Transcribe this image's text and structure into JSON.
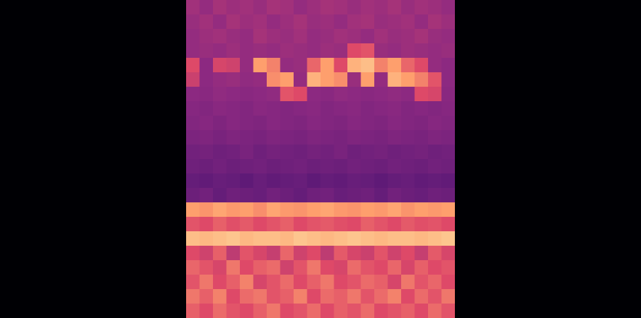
{
  "chart_data": {
    "type": "heatmap",
    "tick_labels": false,
    "cells": [
      [
        0.55,
        0.52,
        0.56,
        0.54,
        0.55,
        0.53,
        0.56,
        0.55,
        0.52,
        0.54,
        0.56,
        0.55,
        0.53,
        0.55,
        0.54,
        0.56,
        0.53,
        0.55,
        0.54,
        0.52
      ],
      [
        0.53,
        0.55,
        0.52,
        0.56,
        0.54,
        0.55,
        0.52,
        0.54,
        0.56,
        0.53,
        0.54,
        0.52,
        0.55,
        0.56,
        0.53,
        0.54,
        0.55,
        0.52,
        0.56,
        0.54
      ],
      [
        0.52,
        0.54,
        0.55,
        0.53,
        0.52,
        0.56,
        0.54,
        0.53,
        0.55,
        0.52,
        0.53,
        0.55,
        0.54,
        0.52,
        0.55,
        0.53,
        0.54,
        0.56,
        0.53,
        0.52
      ],
      [
        0.52,
        0.53,
        0.52,
        0.54,
        0.52,
        0.53,
        0.52,
        0.54,
        0.53,
        0.52,
        0.54,
        0.53,
        0.7,
        0.72,
        0.53,
        0.52,
        0.54,
        0.53,
        0.52,
        0.53
      ],
      [
        0.7,
        0.5,
        0.68,
        0.66,
        0.52,
        0.85,
        0.8,
        0.52,
        0.53,
        0.75,
        0.85,
        0.7,
        0.88,
        0.9,
        0.8,
        0.85,
        0.75,
        0.7,
        0.52,
        0.5
      ],
      [
        0.65,
        0.5,
        0.52,
        0.53,
        0.51,
        0.52,
        0.82,
        0.85,
        0.52,
        0.88,
        0.85,
        0.82,
        0.53,
        0.85,
        0.52,
        0.88,
        0.85,
        0.8,
        0.72,
        0.5
      ],
      [
        0.5,
        0.49,
        0.51,
        0.5,
        0.49,
        0.5,
        0.51,
        0.72,
        0.7,
        0.5,
        0.49,
        0.51,
        0.5,
        0.49,
        0.5,
        0.51,
        0.5,
        0.7,
        0.68,
        0.49
      ],
      [
        0.48,
        0.47,
        0.49,
        0.48,
        0.47,
        0.49,
        0.48,
        0.47,
        0.48,
        0.49,
        0.47,
        0.48,
        0.49,
        0.47,
        0.48,
        0.49,
        0.47,
        0.48,
        0.47,
        0.48
      ],
      [
        0.47,
        0.48,
        0.46,
        0.48,
        0.47,
        0.46,
        0.48,
        0.47,
        0.46,
        0.48,
        0.47,
        0.46,
        0.48,
        0.47,
        0.46,
        0.48,
        0.47,
        0.46,
        0.48,
        0.47
      ],
      [
        0.45,
        0.46,
        0.44,
        0.46,
        0.45,
        0.44,
        0.46,
        0.45,
        0.44,
        0.46,
        0.45,
        0.44,
        0.46,
        0.45,
        0.44,
        0.46,
        0.45,
        0.44,
        0.46,
        0.45
      ],
      [
        0.42,
        0.43,
        0.41,
        0.42,
        0.44,
        0.41,
        0.43,
        0.42,
        0.41,
        0.43,
        0.42,
        0.44,
        0.41,
        0.42,
        0.43,
        0.41,
        0.42,
        0.43,
        0.41,
        0.42
      ],
      [
        0.41,
        0.4,
        0.42,
        0.4,
        0.41,
        0.42,
        0.4,
        0.41,
        0.42,
        0.4,
        0.41,
        0.4,
        0.42,
        0.41,
        0.4,
        0.42,
        0.41,
        0.4,
        0.42,
        0.41
      ],
      [
        0.38,
        0.37,
        0.39,
        0.38,
        0.36,
        0.39,
        0.37,
        0.38,
        0.39,
        0.36,
        0.38,
        0.37,
        0.39,
        0.38,
        0.36,
        0.38,
        0.39,
        0.37,
        0.38,
        0.37
      ],
      [
        0.4,
        0.42,
        0.38,
        0.41,
        0.4,
        0.39,
        0.42,
        0.4,
        0.38,
        0.41,
        0.42,
        0.39,
        0.4,
        0.41,
        0.38,
        0.42,
        0.4,
        0.39,
        0.41,
        0.4
      ],
      [
        0.85,
        0.83,
        0.86,
        0.84,
        0.85,
        0.82,
        0.86,
        0.84,
        0.83,
        0.85,
        0.86,
        0.84,
        0.83,
        0.85,
        0.84,
        0.86,
        0.83,
        0.85,
        0.84,
        0.85
      ],
      [
        0.72,
        0.7,
        0.74,
        0.71,
        0.73,
        0.7,
        0.72,
        0.74,
        0.7,
        0.72,
        0.73,
        0.71,
        0.7,
        0.74,
        0.72,
        0.7,
        0.73,
        0.71,
        0.72,
        0.7
      ],
      [
        0.9,
        0.89,
        0.9,
        0.91,
        0.89,
        0.9,
        0.9,
        0.89,
        0.91,
        0.9,
        0.89,
        0.9,
        0.91,
        0.9,
        0.89,
        0.9,
        0.9,
        0.89,
        0.9,
        0.91
      ],
      [
        0.7,
        0.66,
        0.74,
        0.62,
        0.72,
        0.68,
        0.64,
        0.75,
        0.66,
        0.7,
        0.62,
        0.73,
        0.68,
        0.65,
        0.72,
        0.66,
        0.7,
        0.64,
        0.73,
        0.68
      ],
      [
        0.75,
        0.72,
        0.68,
        0.78,
        0.7,
        0.74,
        0.76,
        0.66,
        0.72,
        0.78,
        0.7,
        0.68,
        0.76,
        0.72,
        0.7,
        0.75,
        0.68,
        0.74,
        0.7,
        0.72
      ],
      [
        0.72,
        0.78,
        0.7,
        0.74,
        0.8,
        0.68,
        0.72,
        0.76,
        0.7,
        0.74,
        0.78,
        0.7,
        0.72,
        0.76,
        0.74,
        0.68,
        0.78,
        0.72,
        0.75,
        0.7
      ],
      [
        0.78,
        0.74,
        0.8,
        0.7,
        0.76,
        0.78,
        0.72,
        0.74,
        0.8,
        0.7,
        0.76,
        0.74,
        0.78,
        0.72,
        0.76,
        0.8,
        0.7,
        0.76,
        0.72,
        0.78
      ],
      [
        0.74,
        0.7,
        0.76,
        0.72,
        0.7,
        0.74,
        0.78,
        0.7,
        0.72,
        0.76,
        0.7,
        0.74,
        0.72,
        0.76,
        0.7,
        0.72,
        0.74,
        0.7,
        0.76,
        0.72
      ]
    ]
  }
}
